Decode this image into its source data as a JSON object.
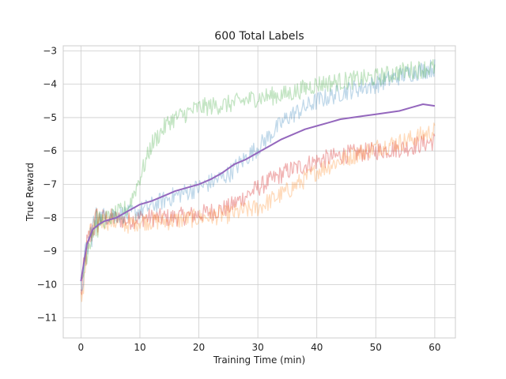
{
  "chart_data": {
    "type": "line",
    "title": "600 Total Labels",
    "xlabel": "Training Time (min)",
    "ylabel": "True Reward",
    "xlim": [
      -3,
      63.5
    ],
    "ylim": [
      -11.6,
      -2.85
    ],
    "xticks": [
      0,
      10,
      20,
      30,
      40,
      50,
      60
    ],
    "yticks": [
      -11,
      -10,
      -9,
      -8,
      -7,
      -6,
      -5,
      -4,
      -3
    ],
    "grid": true,
    "legend": "none",
    "series": [
      {
        "color": "#d62728",
        "style": "noisy",
        "opacity": 0.35,
        "x": [
          0,
          1,
          2,
          3,
          5,
          8,
          10,
          15,
          20,
          25,
          30,
          35,
          40,
          45,
          50,
          55,
          60
        ],
        "values": [
          -10.3,
          -8.9,
          -8.3,
          -8.0,
          -8.0,
          -8.1,
          -8.0,
          -8.0,
          -7.9,
          -7.7,
          -7.1,
          -6.6,
          -6.3,
          -6.1,
          -6.0,
          -5.9,
          -5.7
        ]
      },
      {
        "color": "#ff7f0e",
        "style": "noisy",
        "opacity": 0.28,
        "x": [
          0,
          1,
          2,
          3,
          5,
          8,
          10,
          15,
          20,
          25,
          30,
          35,
          40,
          45,
          50,
          55,
          60
        ],
        "values": [
          -10.6,
          -9.0,
          -8.4,
          -8.1,
          -8.1,
          -8.2,
          -8.1,
          -8.1,
          -8.0,
          -7.9,
          -7.7,
          -7.2,
          -6.6,
          -6.2,
          -5.9,
          -5.7,
          -5.4
        ]
      },
      {
        "color": "#1f77b4",
        "style": "noisy",
        "opacity": 0.28,
        "x": [
          0,
          1,
          2,
          3,
          5,
          8,
          10,
          15,
          20,
          25,
          28,
          30,
          35,
          40,
          45,
          50,
          55,
          60
        ],
        "values": [
          -10.2,
          -8.9,
          -8.3,
          -8.0,
          -7.9,
          -7.9,
          -7.8,
          -7.4,
          -7.1,
          -6.7,
          -6.2,
          -5.9,
          -5.0,
          -4.5,
          -4.2,
          -4.0,
          -3.7,
          -3.5
        ]
      },
      {
        "color": "#2ca02c",
        "style": "noisy",
        "opacity": 0.28,
        "x": [
          0,
          1,
          2,
          3,
          5,
          8,
          10,
          12,
          15,
          20,
          25,
          30,
          35,
          40,
          45,
          50,
          55,
          60
        ],
        "values": [
          -10.2,
          -8.9,
          -8.3,
          -8.1,
          -8.0,
          -7.7,
          -6.8,
          -5.8,
          -5.1,
          -4.7,
          -4.6,
          -4.4,
          -4.3,
          -4.0,
          -3.9,
          -3.8,
          -3.6,
          -3.5
        ]
      },
      {
        "color": "#9467bd",
        "style": "solid",
        "x": [
          0,
          1,
          2,
          3,
          4,
          5,
          6,
          7,
          8,
          9,
          10,
          12,
          14,
          16,
          18,
          20,
          22,
          24,
          26,
          28,
          30,
          32,
          34,
          36,
          38,
          40,
          42,
          44,
          46,
          48,
          50,
          52,
          54,
          56,
          58,
          60
        ],
        "values": [
          -9.9,
          -8.8,
          -8.35,
          -8.2,
          -8.1,
          -8.05,
          -8.0,
          -7.9,
          -7.8,
          -7.7,
          -7.6,
          -7.5,
          -7.35,
          -7.2,
          -7.1,
          -7.0,
          -6.85,
          -6.65,
          -6.4,
          -6.25,
          -6.05,
          -5.85,
          -5.65,
          -5.5,
          -5.35,
          -5.25,
          -5.15,
          -5.05,
          -5.0,
          -4.95,
          -4.9,
          -4.85,
          -4.8,
          -4.7,
          -4.6,
          -4.65
        ]
      }
    ]
  }
}
